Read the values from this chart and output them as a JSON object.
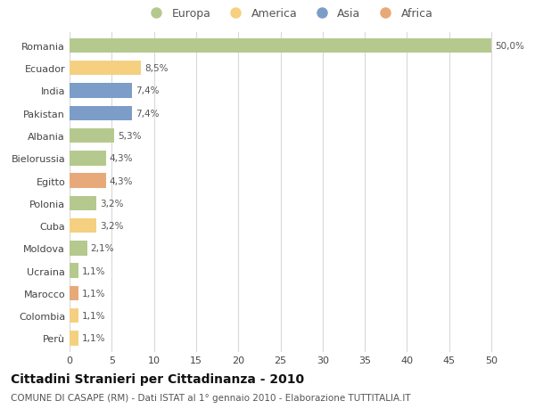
{
  "categories": [
    "Romania",
    "Ecuador",
    "India",
    "Pakistan",
    "Albania",
    "Bielorussia",
    "Egitto",
    "Polonia",
    "Cuba",
    "Moldova",
    "Ucraina",
    "Marocco",
    "Colombia",
    "Perù"
  ],
  "values": [
    50.0,
    8.5,
    7.4,
    7.4,
    5.3,
    4.3,
    4.3,
    3.2,
    3.2,
    2.1,
    1.1,
    1.1,
    1.1,
    1.1
  ],
  "labels": [
    "50,0%",
    "8,5%",
    "7,4%",
    "7,4%",
    "5,3%",
    "4,3%",
    "4,3%",
    "3,2%",
    "3,2%",
    "2,1%",
    "1,1%",
    "1,1%",
    "1,1%",
    "1,1%"
  ],
  "colors": [
    "#b5c98e",
    "#f5d080",
    "#7b9dc7",
    "#7b9dc7",
    "#b5c98e",
    "#b5c98e",
    "#e8a97a",
    "#b5c98e",
    "#f5d080",
    "#b5c98e",
    "#b5c98e",
    "#e8a97a",
    "#f5d080",
    "#f5d080"
  ],
  "legend_labels": [
    "Europa",
    "America",
    "Asia",
    "Africa"
  ],
  "legend_colors": [
    "#b5c98e",
    "#f5d080",
    "#7b9dc7",
    "#e8a97a"
  ],
  "title": "Cittadini Stranieri per Cittadinanza - 2010",
  "subtitle": "COMUNE DI CASAPE (RM) - Dati ISTAT al 1° gennaio 2010 - Elaborazione TUTTITALIA.IT",
  "xlim": [
    0,
    52
  ],
  "xticks": [
    0,
    5,
    10,
    15,
    20,
    25,
    30,
    35,
    40,
    45,
    50
  ],
  "background_color": "#ffffff",
  "grid_color": "#d8d8d8",
  "bar_height": 0.65,
  "title_fontsize": 10,
  "subtitle_fontsize": 7.5,
  "label_fontsize": 7.5,
  "tick_fontsize": 8,
  "legend_fontsize": 9
}
